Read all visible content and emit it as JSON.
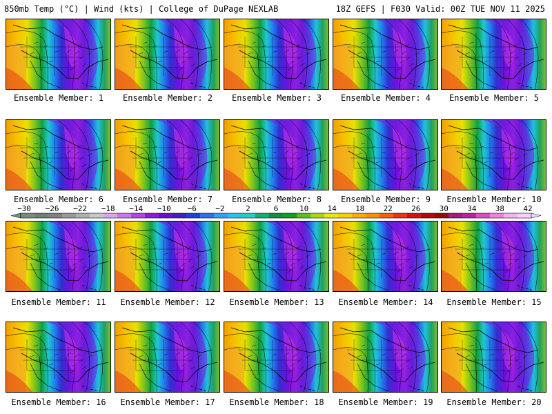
{
  "header": {
    "left_title": "850mb Temp (°C) | Wind (kts) | College of DuPage NEXLAB",
    "right_title": "18Z GEFS | F030 Valid: 00Z TUE NOV 11 2025"
  },
  "caption_prefix": "Ensemble Member: ",
  "members": [
    "Ensemble Member: 1",
    "Ensemble Member: 2",
    "Ensemble Member: 3",
    "Ensemble Member: 4",
    "Ensemble Member: 5",
    "Ensemble Member: 6",
    "Ensemble Member: 7",
    "Ensemble Member: 8",
    "Ensemble Member: 9",
    "Ensemble Member: 10",
    "Ensemble Member: 11",
    "Ensemble Member: 12",
    "Ensemble Member: 13",
    "Ensemble Member: 14",
    "Ensemble Member: 15",
    "Ensemble Member: 16",
    "Ensemble Member: 17",
    "Ensemble Member: 18",
    "Ensemble Member: 19",
    "Ensemble Member: 20"
  ],
  "colorbar": {
    "ticks": [
      "−30",
      "−26",
      "−22",
      "−18",
      "−14",
      "−10",
      "−6",
      "−2",
      "2",
      "6",
      "10",
      "14",
      "18",
      "22",
      "26",
      "30",
      "34",
      "38",
      "42"
    ],
    "colors": [
      "#7a8a80",
      "#6f7f75",
      "#808080",
      "#9a9a9a",
      "#b0b0b0",
      "#c8c8c8",
      "#d7a8e8",
      "#c878e8",
      "#b048e0",
      "#8a1ae0",
      "#6a10d0",
      "#4020c0",
      "#2040e0",
      "#2f70f0",
      "#30a0f8",
      "#20c8e8",
      "#20d0c0",
      "#10b070",
      "#109040",
      "#10a020",
      "#60c010",
      "#a8d808",
      "#e8e800",
      "#f8d000",
      "#f8b000",
      "#f89000",
      "#f86000",
      "#f03010",
      "#d81010",
      "#b80808",
      "#980808",
      "#a0207a",
      "#c0209a",
      "#d850c0",
      "#f080e8",
      "#f8b0f0",
      "#f8d0f8"
    ]
  }
}
